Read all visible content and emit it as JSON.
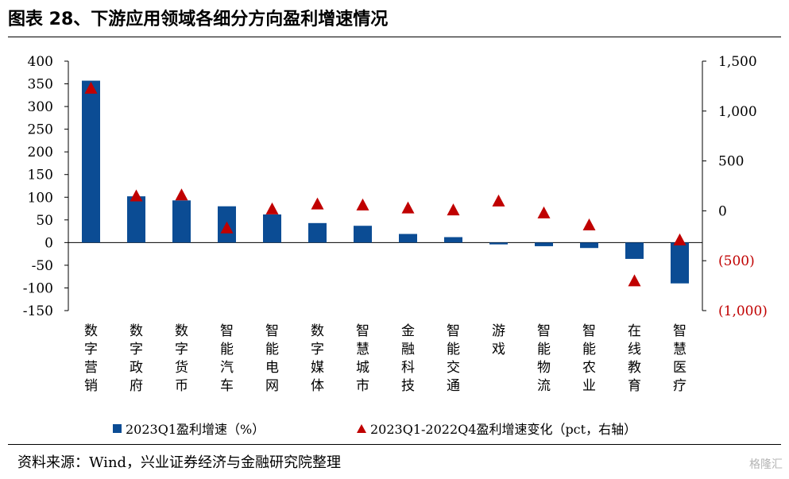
{
  "title": "图表 28、下游应用领域各细分方向盈利增速情况",
  "source": "资料来源：Wind，兴业证券经济与金融研究院整理",
  "brand": "格隆汇",
  "colors": {
    "bar": "#0b4c94",
    "triangle": "#c00000",
    "negative_right_tick": "#c00000"
  },
  "chart_data": {
    "type": "bar",
    "categories": [
      "数字营销",
      "数字政府",
      "数字货币",
      "智能汽车",
      "智能电网",
      "数字媒体",
      "智慧城市",
      "金融科技",
      "智能交通",
      "游戏",
      "智能物流",
      "智能农业",
      "在线教育",
      "智慧医疗"
    ],
    "series": [
      {
        "name": "2023Q1盈利增速（%）",
        "type": "bar",
        "axis": "left",
        "values": [
          357,
          102,
          93,
          80,
          62,
          43,
          37,
          19,
          12,
          -4,
          -8,
          -12,
          -36,
          -90
        ]
      },
      {
        "name": "2023Q1-2022Q4盈利增速变化（pct，右轴）",
        "type": "scatter-triangle",
        "axis": "right",
        "values": [
          1230,
          150,
          160,
          -170,
          20,
          70,
          60,
          30,
          10,
          100,
          -20,
          -140,
          -700,
          -290
        ]
      }
    ],
    "left_axis": {
      "ylim": [
        -150,
        400
      ],
      "ticks": [
        "400",
        "350",
        "300",
        "250",
        "200",
        "150",
        "100",
        "50",
        "0",
        "-50",
        "-100",
        "-150"
      ]
    },
    "right_axis": {
      "ylim": [
        -1000,
        1500
      ],
      "ticks": [
        "1,500",
        "1,000",
        "500",
        "0",
        "(500)",
        "(1,000)"
      ]
    },
    "legend_placement": "bottom",
    "grid": false
  }
}
